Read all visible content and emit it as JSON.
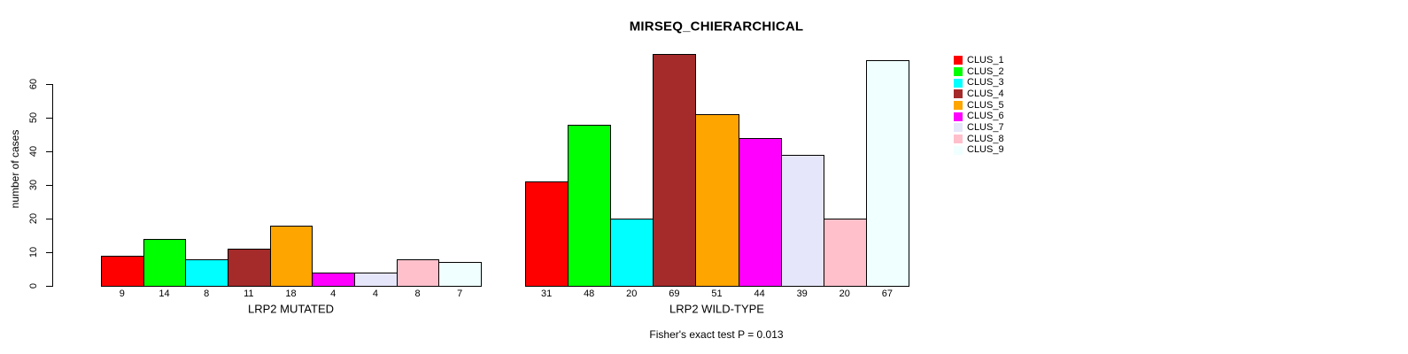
{
  "title": "MIRSEQ_CHIERARCHICAL",
  "footer": "Fisher's exact test P = 0.013",
  "y_axis": {
    "label": "number of cases",
    "ticks": [
      0,
      10,
      20,
      30,
      40,
      50,
      60
    ]
  },
  "legend": {
    "items": [
      {
        "label": "CLUS_1",
        "color": "#FF0000"
      },
      {
        "label": "CLUS_2",
        "color": "#00FF00"
      },
      {
        "label": "CLUS_3",
        "color": "#00FFFF"
      },
      {
        "label": "CLUS_4",
        "color": "#A52A2A"
      },
      {
        "label": "CLUS_5",
        "color": "#FFA500"
      },
      {
        "label": "CLUS_6",
        "color": "#FF00FF"
      },
      {
        "label": "CLUS_7",
        "color": "#E6E6FA"
      },
      {
        "label": "CLUS_8",
        "color": "#FFC0CB"
      },
      {
        "label": "CLUS_9",
        "color": "#F0FFFF"
      }
    ]
  },
  "chart_data": {
    "type": "bar",
    "title": "MIRSEQ_CHIERARCHICAL",
    "ylabel": "number of cases",
    "ylim": [
      0,
      69
    ],
    "yticks": [
      0,
      10,
      20,
      30,
      40,
      50,
      60
    ],
    "grid": false,
    "legend_position": "right",
    "categories": [
      "CLUS_1",
      "CLUS_2",
      "CLUS_3",
      "CLUS_4",
      "CLUS_5",
      "CLUS_6",
      "CLUS_7",
      "CLUS_8",
      "CLUS_9"
    ],
    "colors": [
      "#FF0000",
      "#00FF00",
      "#00FFFF",
      "#A52A2A",
      "#FFA500",
      "#FF00FF",
      "#E6E6FA",
      "#FFC0CB",
      "#F0FFFF"
    ],
    "bar_border_color": "#000000",
    "groups": [
      {
        "xlabel": "LRP2 MUTATED",
        "values": [
          9,
          14,
          8,
          11,
          18,
          4,
          4,
          8,
          7
        ]
      },
      {
        "xlabel": "LRP2 WILD-TYPE",
        "values": [
          31,
          48,
          20,
          69,
          51,
          44,
          39,
          20,
          67
        ]
      }
    ],
    "annotation": "Fisher's exact test P = 0.013"
  }
}
